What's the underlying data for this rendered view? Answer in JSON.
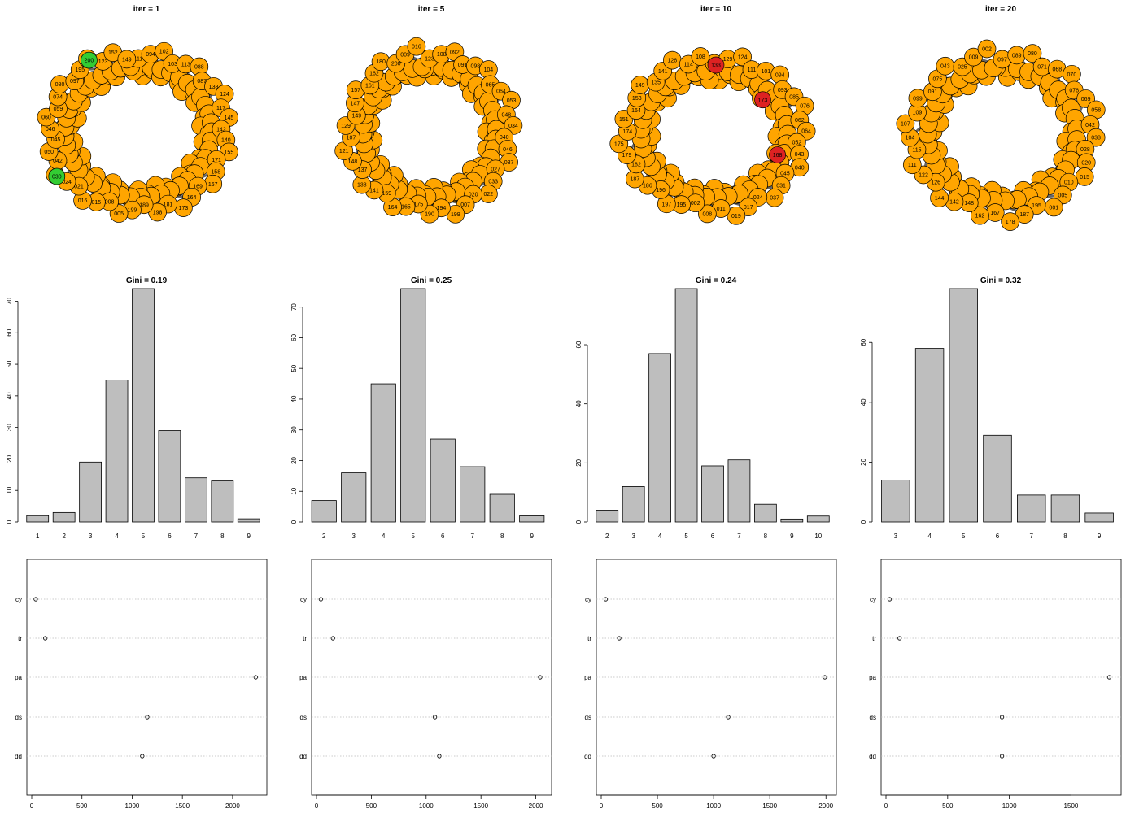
{
  "colors": {
    "node": "#FFA500",
    "node_stroke": "#000000",
    "edge": "#666666",
    "bar_fill": "#BEBEBE",
    "bar_stroke": "#000000",
    "highlight_green": "#33CC33",
    "highlight_red": "#DD2222",
    "grid": "#BBBBBB"
  },
  "chart_data": [
    {
      "type": "network",
      "title": "iter = 1",
      "layout": "ring",
      "node_color": "orange",
      "node_labels": [
        "111",
        "094",
        "102",
        "103",
        "113",
        "088",
        "087",
        "138",
        "124",
        "117",
        "145",
        "142",
        "140",
        "155",
        "171",
        "158",
        "167",
        "169",
        "164",
        "173",
        "181",
        "198",
        "189",
        "199",
        "005",
        "008",
        "015",
        "016",
        "021",
        "024",
        "030",
        "042",
        "050",
        "045",
        "046",
        "060",
        "059",
        "074",
        "080",
        "097",
        "195",
        "200",
        "123",
        "152",
        "149"
      ],
      "highlighted_nodes": [
        {
          "label": "200",
          "color": "green"
        },
        {
          "label": "030",
          "color": "green"
        }
      ]
    },
    {
      "type": "network",
      "title": "iter = 5",
      "layout": "ring",
      "node_color": "orange",
      "node_labels": [
        "123",
        "108",
        "092",
        "091",
        "098",
        "104",
        "065",
        "064",
        "053",
        "048",
        "034",
        "040",
        "046",
        "037",
        "027",
        "033",
        "022",
        "020",
        "007",
        "199",
        "194",
        "190",
        "175",
        "165",
        "164",
        "159",
        "141",
        "138",
        "137",
        "148",
        "121",
        "107",
        "129",
        "149",
        "147",
        "157",
        "161",
        "162",
        "180",
        "200",
        "009",
        "016"
      ],
      "highlighted_nodes": []
    },
    {
      "type": "network",
      "title": "iter = 10",
      "layout": "ring",
      "node_color": "orange",
      "node_labels": [
        "133",
        "129",
        "124",
        "111",
        "101",
        "094",
        "093",
        "085",
        "076",
        "062",
        "064",
        "052",
        "043",
        "040",
        "045",
        "031",
        "037",
        "024",
        "017",
        "019",
        "011",
        "008",
        "002",
        "195",
        "197",
        "196",
        "186",
        "187",
        "182",
        "179",
        "175",
        "174",
        "151",
        "164",
        "153",
        "149",
        "135",
        "141",
        "126",
        "114",
        "108"
      ],
      "highlighted_nodes": [
        {
          "label": "173",
          "color": "red"
        },
        {
          "label": "168",
          "color": "red"
        },
        {
          "label": "133",
          "color": "red"
        }
      ]
    },
    {
      "type": "network",
      "title": "iter = 20",
      "layout": "ring",
      "node_color": "orange",
      "node_labels": [
        "097",
        "089",
        "080",
        "071",
        "068",
        "070",
        "076",
        "069",
        "058",
        "042",
        "038",
        "028",
        "020",
        "015",
        "010",
        "005",
        "001",
        "195",
        "187",
        "178",
        "167",
        "162",
        "148",
        "142",
        "144",
        "126",
        "122",
        "111",
        "115",
        "104",
        "107",
        "109",
        "099",
        "091",
        "075",
        "043",
        "025",
        "009",
        "002"
      ],
      "highlighted_nodes": []
    },
    {
      "type": "bar",
      "title": "Gini = 0.19",
      "categories": [
        "1",
        "2",
        "3",
        "4",
        "5",
        "6",
        "7",
        "8",
        "9"
      ],
      "values": [
        2,
        3,
        19,
        45,
        74,
        29,
        14,
        13,
        1
      ],
      "ylim": [
        0,
        74
      ],
      "yticks": [
        0,
        10,
        20,
        30,
        40,
        50,
        60,
        70
      ]
    },
    {
      "type": "bar",
      "title": "Gini = 0.25",
      "categories": [
        "2",
        "3",
        "4",
        "5",
        "6",
        "7",
        "8",
        "9"
      ],
      "values": [
        7,
        16,
        45,
        76,
        27,
        18,
        9,
        2
      ],
      "ylim": [
        0,
        76
      ],
      "yticks": [
        0,
        10,
        20,
        30,
        40,
        50,
        60,
        70
      ]
    },
    {
      "type": "bar",
      "title": "Gini = 0.24",
      "categories": [
        "2",
        "3",
        "4",
        "5",
        "6",
        "7",
        "8",
        "9",
        "10"
      ],
      "values": [
        4,
        12,
        57,
        79,
        19,
        21,
        6,
        1,
        2
      ],
      "ylim": [
        0,
        79
      ],
      "yticks": [
        0,
        20,
        40,
        60
      ]
    },
    {
      "type": "bar",
      "title": "Gini = 0.32",
      "categories": [
        "3",
        "4",
        "5",
        "6",
        "7",
        "8",
        "9"
      ],
      "values": [
        14,
        58,
        78,
        29,
        9,
        9,
        3
      ],
      "ylim": [
        0,
        78
      ],
      "yticks": [
        0,
        20,
        40,
        60
      ]
    },
    {
      "type": "dotchart",
      "labels": [
        "cy",
        "tr",
        "pa",
        "ds",
        "dd"
      ],
      "values": [
        40,
        135,
        2230,
        1150,
        1100
      ],
      "xlim": [
        0,
        2260
      ],
      "xticks": [
        0,
        500,
        1000,
        1500,
        2000
      ]
    },
    {
      "type": "dotchart",
      "labels": [
        "cy",
        "tr",
        "pa",
        "ds",
        "dd"
      ],
      "values": [
        40,
        150,
        2040,
        1080,
        1120
      ],
      "xlim": [
        0,
        2070
      ],
      "xticks": [
        0,
        500,
        1000,
        1500,
        2000
      ]
    },
    {
      "type": "dotchart",
      "labels": [
        "cy",
        "tr",
        "pa",
        "ds",
        "dd"
      ],
      "values": [
        40,
        160,
        1990,
        1130,
        1000
      ],
      "xlim": [
        0,
        2020
      ],
      "xticks": [
        0,
        500,
        1000,
        1500,
        2000
      ]
    },
    {
      "type": "dotchart",
      "labels": [
        "cy",
        "tr",
        "pa",
        "ds",
        "dd"
      ],
      "values": [
        30,
        110,
        1810,
        940,
        940
      ],
      "xlim": [
        0,
        1840
      ],
      "xticks": [
        0,
        500,
        1000,
        1500
      ]
    }
  ]
}
